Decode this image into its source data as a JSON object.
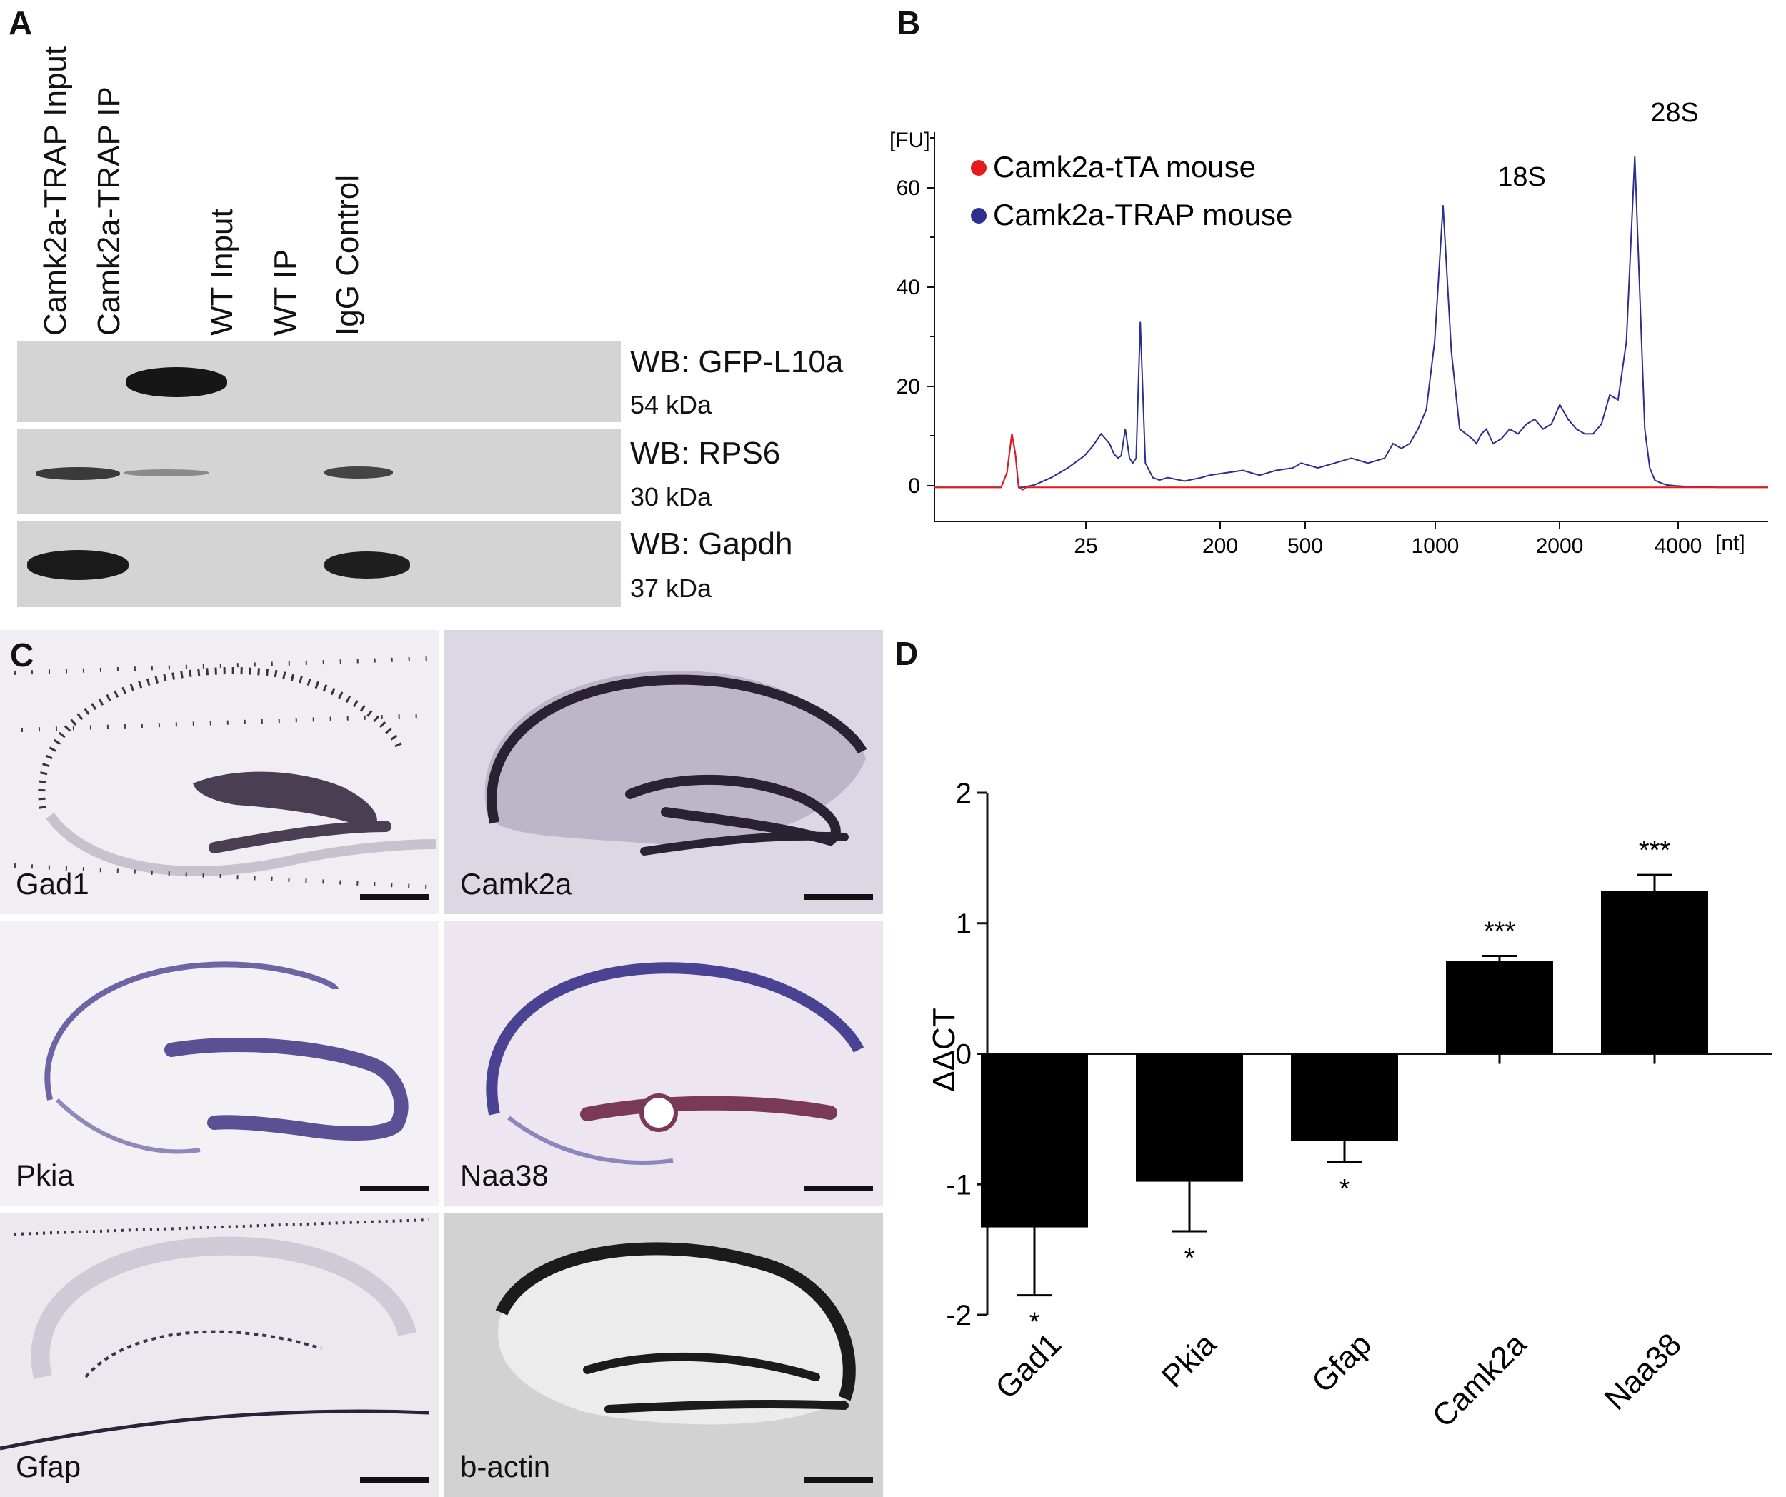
{
  "panels": {
    "a": "A",
    "b": "B",
    "c": "C",
    "d": "D"
  },
  "blot": {
    "lanes": [
      "Camk2a-TRAP Input",
      "Camk2a-TRAP IP",
      "WT Input",
      "WT IP",
      "IgG Control"
    ],
    "rows": [
      {
        "title": "WB: GFP-L10a",
        "kda": "54 kDa"
      },
      {
        "title": "WB: RPS6",
        "kda": "30 kDa"
      },
      {
        "title": "WB: Gapdh",
        "kda": "37 kDa"
      }
    ]
  },
  "chart_data": [
    {
      "type": "line",
      "panel": "B",
      "yunit": "[FU]",
      "xunit": "[nt]",
      "ylim": [
        -7,
        73
      ],
      "y_ticks": [
        0,
        20,
        40,
        60
      ],
      "x_tick_labels": [
        "25",
        "200",
        "500",
        "1000",
        "2000",
        "4000"
      ],
      "peak_labels": [
        "18S",
        "28S"
      ],
      "legend": {
        "placement": "top-left",
        "entries": [
          {
            "name": "Camk2a-tTA mouse",
            "color": "#e41a1c"
          },
          {
            "name": "Camk2a-TRAP mouse",
            "color": "#2e2e8f"
          }
        ]
      },
      "series": [
        {
          "name": "Camk2a-tTA mouse",
          "color": "#e41a1c",
          "x": [
            0,
            8,
            8.7,
            9.3,
            9.7,
            10.1,
            10.6,
            11,
            20,
            40,
            60,
            80,
            100
          ],
          "y": [
            0,
            0,
            3,
            11,
            7,
            0,
            -0.5,
            0,
            0,
            0,
            0,
            0,
            0
          ]
        },
        {
          "name": "Camk2a-TRAP mouse",
          "color": "#2e2e8f",
          "x": [
            0,
            8,
            8.7,
            9.3,
            9.7,
            10.1,
            10.6,
            12,
            14,
            16,
            18,
            19,
            20,
            21,
            21.5,
            22,
            22.4,
            22.9,
            23.4,
            23.8,
            24.2,
            24.7,
            25.3,
            26.2,
            27,
            28,
            30,
            32,
            33,
            35,
            37,
            39,
            41,
            43,
            44,
            45,
            46,
            48,
            50,
            52,
            54,
            55,
            56,
            57,
            58,
            59,
            60,
            61,
            62,
            63,
            64.5,
            65,
            65.6,
            66.2,
            67,
            68,
            69,
            70,
            71,
            72,
            73,
            74,
            75,
            76,
            77,
            78,
            79,
            80,
            81,
            82,
            83,
            84,
            84.6,
            85.2,
            85.8,
            86.4,
            87,
            87.8,
            89,
            90,
            92,
            94,
            96,
            98,
            100
          ],
          "y": [
            0,
            0,
            3,
            11,
            7,
            0,
            0,
            0.5,
            2,
            4,
            6.5,
            8.5,
            11,
            9,
            7,
            6,
            6.5,
            12,
            6,
            5,
            6,
            34,
            5,
            2,
            1.5,
            2,
            1.3,
            2,
            2.5,
            3,
            3.5,
            2.5,
            3.5,
            4,
            5,
            4.5,
            4,
            5,
            6,
            5,
            6,
            9,
            8,
            9,
            12,
            16,
            30,
            58,
            28,
            12,
            10,
            9,
            11,
            12,
            9,
            10,
            12,
            11,
            13,
            14,
            12,
            13,
            17,
            14,
            12,
            11,
            11,
            13,
            19,
            18,
            30,
            68,
            40,
            12,
            4,
            1.5,
            1,
            0.5,
            0.3,
            0.2,
            0.1,
            0,
            0,
            0,
            0
          ]
        }
      ]
    },
    {
      "type": "bar",
      "panel": "D",
      "ylabel": "ΔΔCT",
      "categories": [
        "Gad1",
        "Pkia",
        "Gfap",
        "Camk2a",
        "Naa38"
      ],
      "values": [
        -1.33,
        -0.98,
        -0.67,
        0.71,
        1.25
      ],
      "errors": [
        0.52,
        0.38,
        0.16,
        0.04,
        0.12
      ],
      "significance": [
        "*",
        "*",
        "*",
        "***",
        "***"
      ],
      "ylim": [
        -2,
        2
      ],
      "y_ticks": [
        -2,
        -1,
        0,
        1,
        2
      ]
    }
  ],
  "ish": {
    "tiles": [
      {
        "label": "Gad1"
      },
      {
        "label": "Camk2a"
      },
      {
        "label": "Pkia"
      },
      {
        "label": "Naa38"
      },
      {
        "label": "Gfap"
      },
      {
        "label": "b-actin"
      }
    ]
  }
}
